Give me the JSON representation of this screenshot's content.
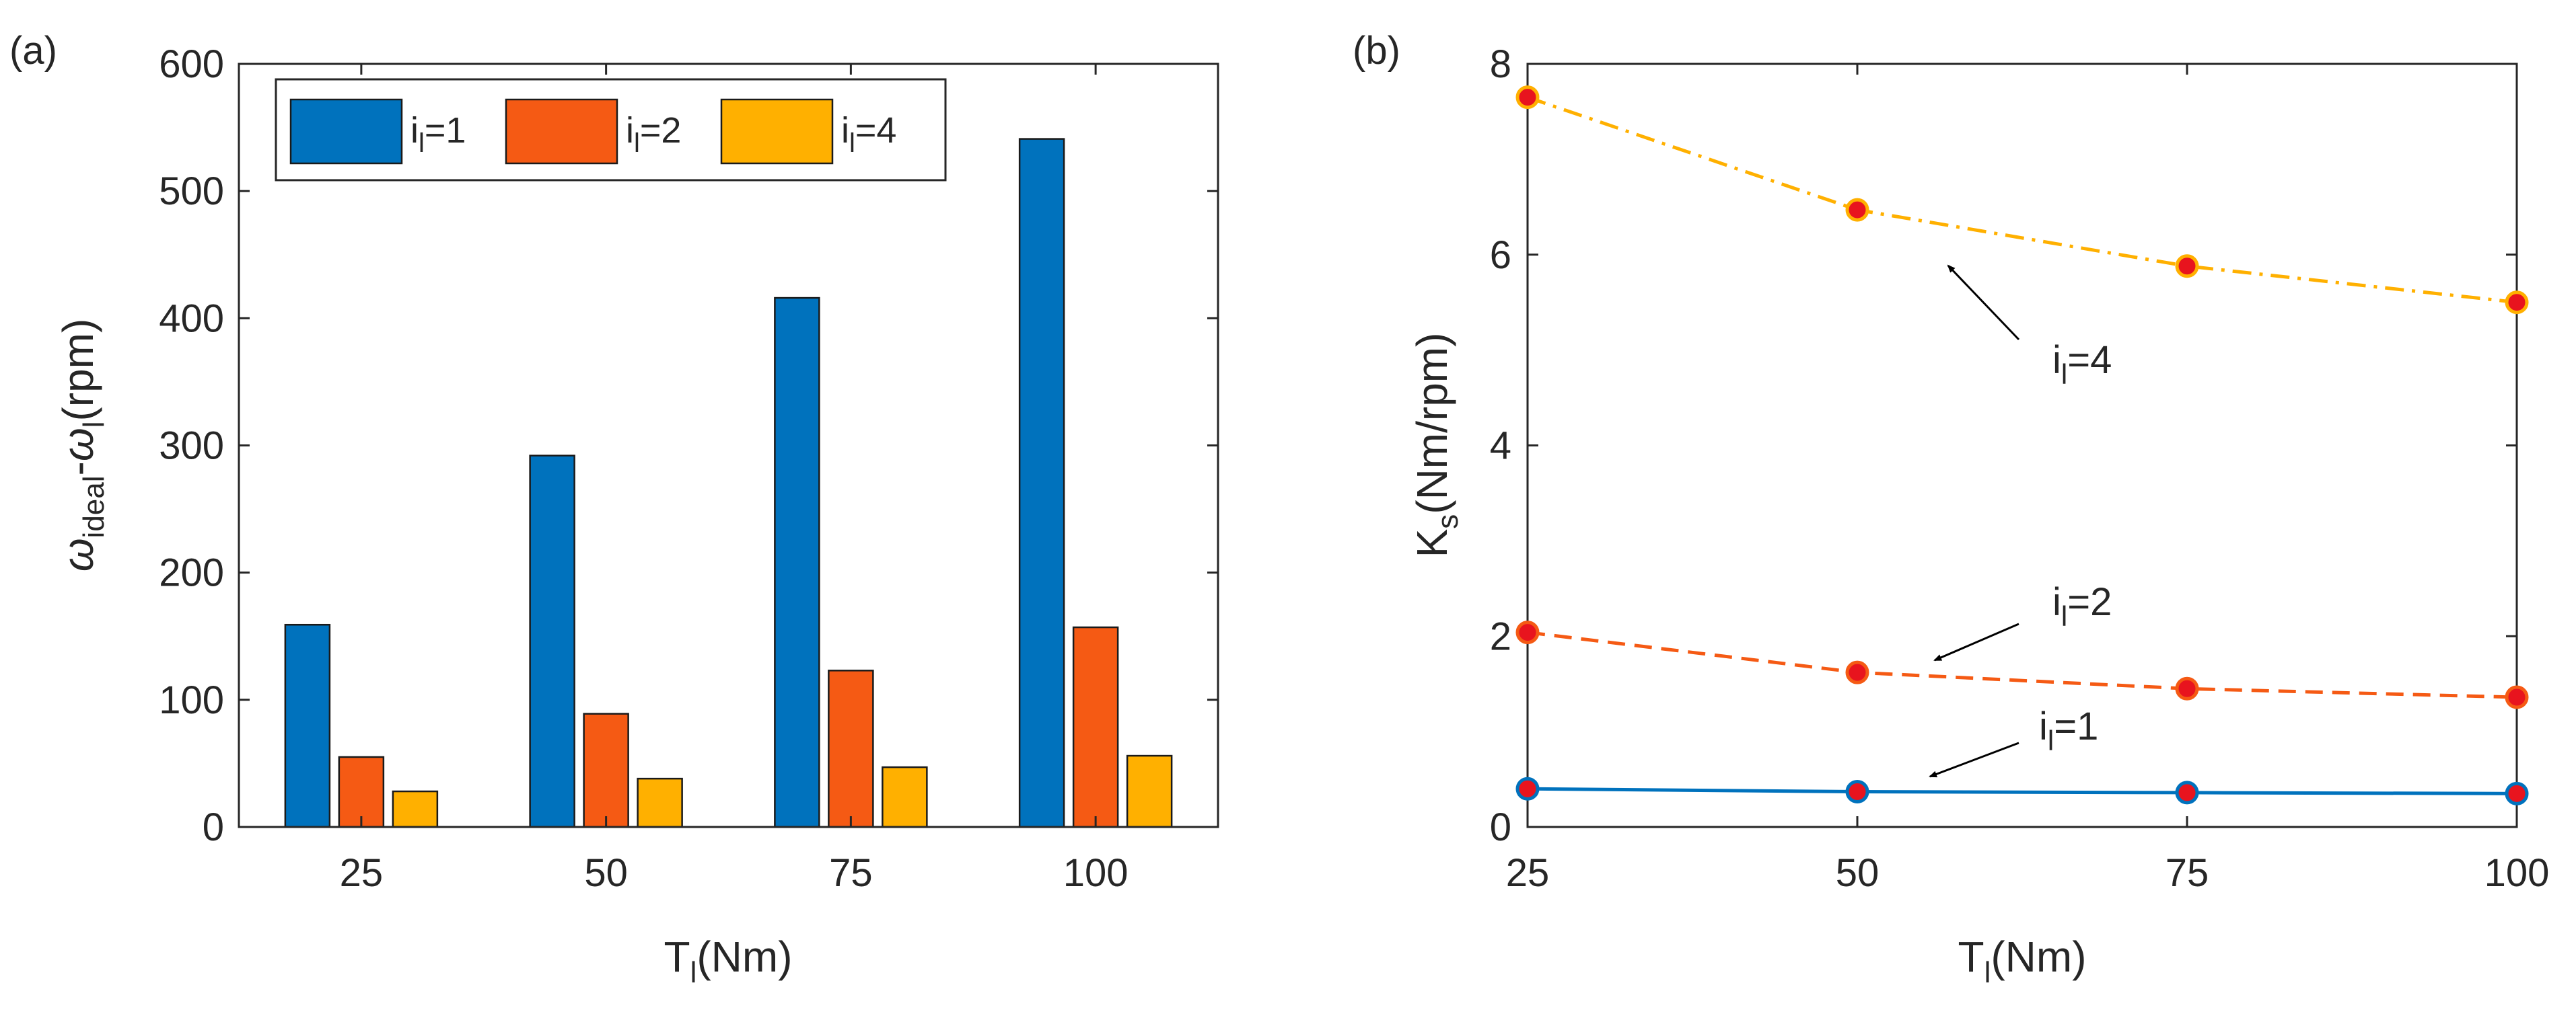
{
  "chart_data": [
    {
      "panel": "(a)",
      "type": "bar",
      "xlabel": {
        "main": "T",
        "sub": "l",
        "tail": "(Nm)"
      },
      "ylabel": {
        "sym1": "ω",
        "sub1": "ideal",
        "mid": "-",
        "sym2": "ω",
        "sub2": "l",
        "tail": "(rpm)"
      },
      "categories": [
        "25",
        "50",
        "75",
        "100"
      ],
      "ylim": [
        0,
        600
      ],
      "yticks": [
        "0",
        "100",
        "200",
        "300",
        "400",
        "500",
        "600"
      ],
      "series": [
        {
          "name": "i_l=1",
          "label_main": "i",
          "label_sub": "l",
          "label_tail": "=1",
          "color": "#0072BD",
          "values": [
            159,
            292,
            416,
            541
          ]
        },
        {
          "name": "i_l=2",
          "label_main": "i",
          "label_sub": "l",
          "label_tail": "=2",
          "color": "#F55A14",
          "values": [
            55,
            89,
            123,
            157
          ]
        },
        {
          "name": "i_l=4",
          "label_main": "i",
          "label_sub": "l",
          "label_tail": "=4",
          "color": "#FFB000",
          "values": [
            28,
            38,
            47,
            56
          ]
        }
      ],
      "legend_position": "top-left"
    },
    {
      "panel": "(b)",
      "type": "line",
      "xlabel": {
        "main": "T",
        "sub": "l",
        "tail": "(Nm)"
      },
      "ylabel": {
        "main": "K",
        "sub": "s",
        "tail": "(Nm/rpm)"
      },
      "x": [
        25,
        50,
        75,
        100
      ],
      "xlim": [
        25,
        100
      ],
      "ylim": [
        0,
        8
      ],
      "xticks": [
        "25",
        "50",
        "75",
        "100"
      ],
      "yticks": [
        "0",
        "2",
        "4",
        "6",
        "8"
      ],
      "series": [
        {
          "name": "i_l=1",
          "label_main": "i",
          "label_sub": "l",
          "label_tail": "=1",
          "color": "#0072BD",
          "dash": "solid",
          "marker_fill": "#E8141E",
          "values": [
            0.4,
            0.37,
            0.36,
            0.35
          ]
        },
        {
          "name": "i_l=2",
          "label_main": "i",
          "label_sub": "l",
          "label_tail": "=2",
          "color": "#F55A14",
          "dash": "dashed",
          "marker_fill": "#E8141E",
          "values": [
            2.04,
            1.62,
            1.45,
            1.36
          ]
        },
        {
          "name": "i_l=4",
          "label_main": "i",
          "label_sub": "l",
          "label_tail": "=4",
          "color": "#FFB000",
          "dash": "dashdot",
          "marker_fill": "#E8141E",
          "values": [
            7.65,
            6.47,
            5.88,
            5.5
          ]
        }
      ]
    }
  ]
}
